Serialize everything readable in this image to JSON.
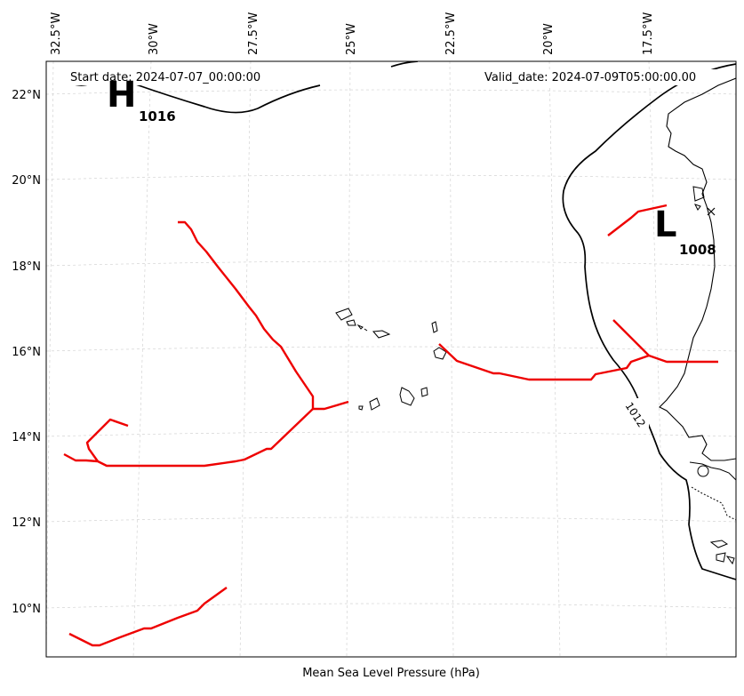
{
  "header": {
    "start_date": "Start date: 2024-07-07_00:00:00",
    "valid_date": "Valid_date: 2024-07-09T05:00:00.00"
  },
  "caption": "Mean Sea Level Pressure (hPa)",
  "longitude_labels": [
    "32.5°W",
    "30°W",
    "27.5°W",
    "25°W",
    "22.5°W",
    "20°W",
    "17.5°W"
  ],
  "latitude_labels": [
    "22°N",
    "20°N",
    "18°N",
    "16°N",
    "14°N",
    "12°N",
    "10°N"
  ],
  "pressure_centers": {
    "high": {
      "letter": "H",
      "value": "1016"
    },
    "low": {
      "letter": "L",
      "value": "1008"
    }
  },
  "contour_labels": [
    "1012"
  ],
  "colors": {
    "isobar": "#000000",
    "trough": "#ee0000",
    "graticule": "#cccccc",
    "coast": "#000000"
  }
}
